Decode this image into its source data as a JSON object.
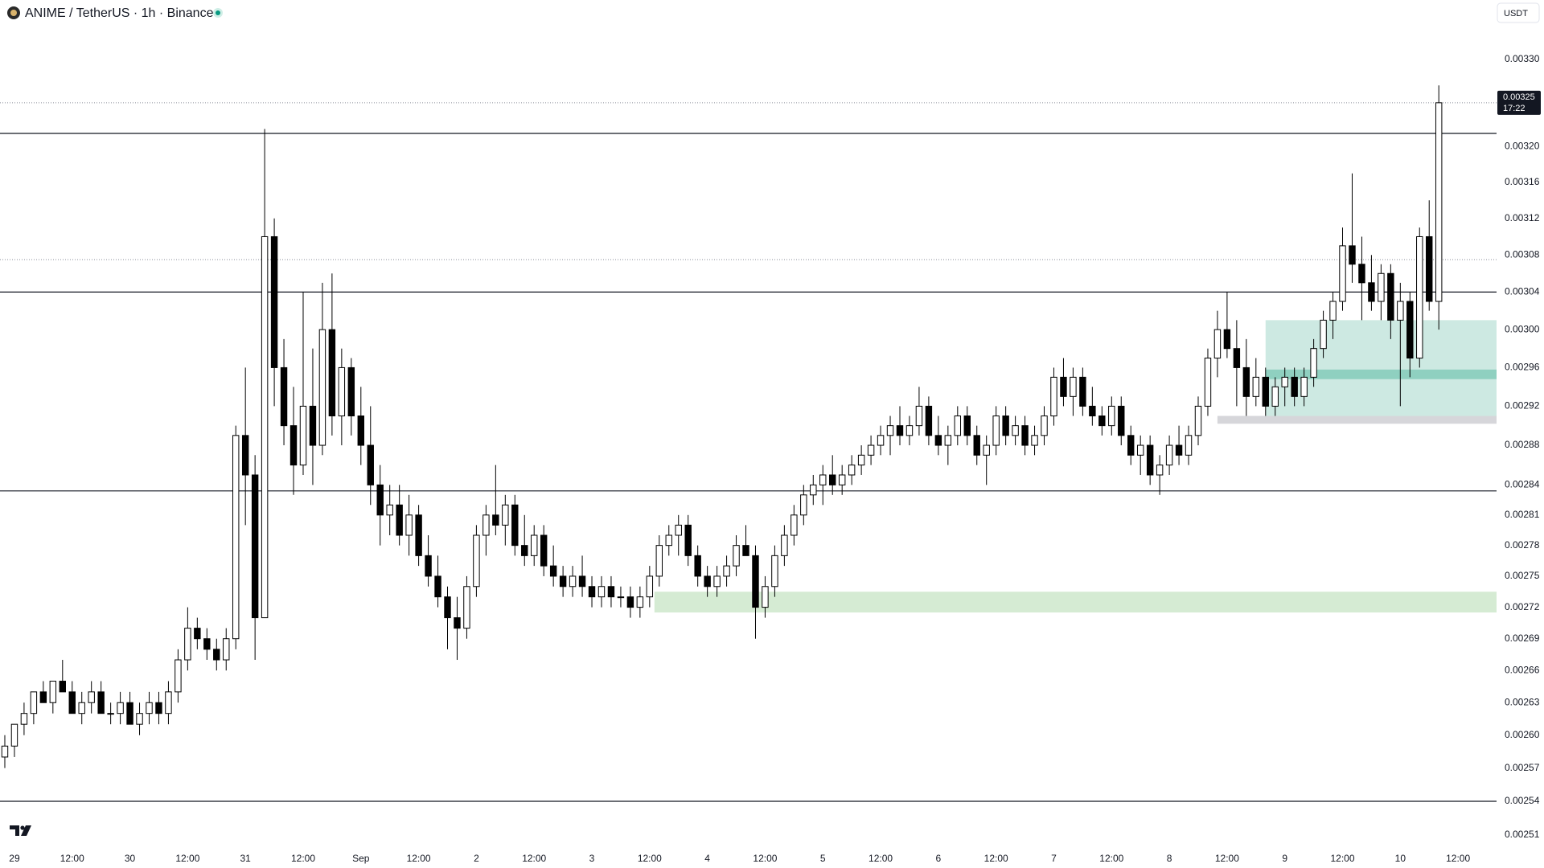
{
  "chart_data": {
    "type": "candlestick",
    "title": "ANIME / TetherUS · 1h · Binance",
    "currency": "USDT",
    "countdown": "17:22",
    "last_price": 0.00325,
    "log_scale": true,
    "grid": false,
    "up_color": "#ffffff",
    "down_color": "#000000",
    "xlim": [
      -3,
      308
    ],
    "ylim": [
      0.0025,
      0.00337
    ],
    "xticks": [
      {
        "value": 0,
        "label": "29"
      },
      {
        "value": 12,
        "label": "12:00"
      },
      {
        "value": 24,
        "label": "30"
      },
      {
        "value": 36,
        "label": "12:00"
      },
      {
        "value": 48,
        "label": "31"
      },
      {
        "value": 60,
        "label": "12:00"
      },
      {
        "value": 72,
        "label": "Sep"
      },
      {
        "value": 84,
        "label": "12:00"
      },
      {
        "value": 96,
        "label": "2"
      },
      {
        "value": 108,
        "label": "12:00"
      },
      {
        "value": 120,
        "label": "3"
      },
      {
        "value": 132,
        "label": "12:00"
      },
      {
        "value": 144,
        "label": "4"
      },
      {
        "value": 156,
        "label": "12:00"
      },
      {
        "value": 168,
        "label": "5"
      },
      {
        "value": 180,
        "label": "12:00"
      },
      {
        "value": 192,
        "label": "6"
      },
      {
        "value": 204,
        "label": "12:00"
      },
      {
        "value": 216,
        "label": "7"
      },
      {
        "value": 228,
        "label": "12:00"
      },
      {
        "value": 240,
        "label": "8"
      },
      {
        "value": 252,
        "label": "12:00"
      },
      {
        "value": 264,
        "label": "9"
      },
      {
        "value": 276,
        "label": "12:00"
      },
      {
        "value": 288,
        "label": "10"
      },
      {
        "value": 300,
        "label": "12:00"
      }
    ],
    "yticks": [
      {
        "value": 0.0033,
        "label": "0.00330"
      },
      {
        "value": 0.0032,
        "label": "0.00320"
      },
      0.00316,
      0.00312,
      0.00308,
      0.00304,
      {
        "value": 0.003,
        "label": "0.00300"
      },
      0.00296,
      0.00292,
      0.00288,
      0.00284,
      0.00281,
      0.00278,
      0.00275,
      0.00272,
      0.00269,
      0.00266,
      0.00263,
      {
        "value": 0.0026,
        "label": "0.00260"
      },
      0.00257,
      0.00254,
      0.00251
    ],
    "levels": [
      0.003215,
      0.00304,
      0.002834,
      0.00254
    ],
    "dotted_levels": [
      0.00325,
      0.003075
    ],
    "zones": [
      {
        "from": 133,
        "low": 0.002715,
        "high": 0.002735,
        "color": "#d5ebd3"
      },
      {
        "from": 260,
        "low": 0.002905,
        "high": 0.00301,
        "color": "#cde9e2"
      },
      {
        "from": 260,
        "low": 0.002948,
        "high": 0.002958,
        "color": "#8fd0c0"
      },
      {
        "from": 250,
        "low": 0.002902,
        "high": 0.00291,
        "color": "#d6d6da"
      }
    ],
    "x": [
      -2,
      0,
      2,
      4,
      6,
      8,
      10,
      12,
      14,
      16,
      18,
      20,
      22,
      24,
      26,
      28,
      30,
      32,
      34,
      36,
      38,
      40,
      42,
      44,
      46,
      48,
      50,
      52,
      54,
      56,
      58,
      60,
      62,
      64,
      66,
      68,
      70,
      72,
      74,
      76,
      78,
      80,
      82,
      84,
      86,
      88,
      90,
      92,
      94,
      96,
      98,
      100,
      102,
      104,
      106,
      108,
      110,
      112,
      114,
      116,
      118,
      120,
      122,
      124,
      126,
      128,
      130,
      132,
      134,
      136,
      138,
      140,
      142,
      144,
      146,
      148,
      150,
      152,
      154,
      156,
      158,
      160,
      162,
      164,
      166,
      168,
      170,
      172,
      174,
      176,
      178,
      180,
      182,
      184,
      186,
      188,
      190,
      192,
      194,
      196,
      198,
      200,
      202,
      204,
      206,
      208,
      210,
      212,
      214,
      216,
      218,
      220,
      222,
      224,
      226,
      228,
      230,
      232,
      234,
      236,
      238,
      240,
      242,
      244,
      246,
      248,
      250,
      252,
      254,
      256,
      258,
      260,
      262,
      264,
      266,
      268,
      270,
      272,
      274,
      276,
      278,
      280,
      282,
      284,
      286,
      288,
      290,
      292,
      294,
      296
    ],
    "ohlc": [
      [
        0.00258,
        0.0026,
        0.00257,
        0.00259
      ],
      [
        0.00259,
        0.00261,
        0.00258,
        0.00261
      ],
      [
        0.00261,
        0.00263,
        0.0026,
        0.00262
      ],
      [
        0.00262,
        0.00264,
        0.00261,
        0.00264
      ],
      [
        0.00264,
        0.00265,
        0.00263,
        0.00263
      ],
      [
        0.00263,
        0.00265,
        0.00262,
        0.00265
      ],
      [
        0.00265,
        0.00267,
        0.00264,
        0.00264
      ],
      [
        0.00264,
        0.00265,
        0.00262,
        0.00262
      ],
      [
        0.00262,
        0.00264,
        0.00261,
        0.00263
      ],
      [
        0.00263,
        0.00265,
        0.00262,
        0.00264
      ],
      [
        0.00264,
        0.00265,
        0.00262,
        0.00262
      ],
      [
        0.00262,
        0.00263,
        0.00261,
        0.00262
      ],
      [
        0.00262,
        0.00264,
        0.00261,
        0.00263
      ],
      [
        0.00263,
        0.00264,
        0.00261,
        0.00261
      ],
      [
        0.00261,
        0.00263,
        0.0026,
        0.00262
      ],
      [
        0.00262,
        0.00264,
        0.00261,
        0.00263
      ],
      [
        0.00263,
        0.00264,
        0.00261,
        0.00262
      ],
      [
        0.00262,
        0.00265,
        0.00261,
        0.00264
      ],
      [
        0.00264,
        0.00268,
        0.00263,
        0.00267
      ],
      [
        0.00267,
        0.00272,
        0.00266,
        0.0027
      ],
      [
        0.0027,
        0.00271,
        0.00268,
        0.00269
      ],
      [
        0.00269,
        0.0027,
        0.00267,
        0.00268
      ],
      [
        0.00268,
        0.00269,
        0.00266,
        0.00267
      ],
      [
        0.00267,
        0.0027,
        0.00266,
        0.00269
      ],
      [
        0.00269,
        0.0029,
        0.00268,
        0.00289
      ],
      [
        0.00289,
        0.00296,
        0.0028,
        0.00285
      ],
      [
        0.00285,
        0.00287,
        0.00267,
        0.00271
      ],
      [
        0.00271,
        0.00322,
        0.00271,
        0.0031
      ],
      [
        0.0031,
        0.00312,
        0.00292,
        0.00296
      ],
      [
        0.00296,
        0.00299,
        0.00288,
        0.0029
      ],
      [
        0.0029,
        0.00294,
        0.00283,
        0.00286
      ],
      [
        0.00286,
        0.00304,
        0.00285,
        0.00292
      ],
      [
        0.00292,
        0.00298,
        0.00284,
        0.00288
      ],
      [
        0.00288,
        0.00305,
        0.00287,
        0.003
      ],
      [
        0.003,
        0.00306,
        0.00289,
        0.00291
      ],
      [
        0.00291,
        0.00298,
        0.00288,
        0.00296
      ],
      [
        0.00296,
        0.00297,
        0.00289,
        0.00291
      ],
      [
        0.00291,
        0.00294,
        0.00286,
        0.00288
      ],
      [
        0.00288,
        0.00292,
        0.00282,
        0.00284
      ],
      [
        0.00284,
        0.00286,
        0.00278,
        0.00281
      ],
      [
        0.00281,
        0.00284,
        0.00279,
        0.00282
      ],
      [
        0.00282,
        0.00284,
        0.00278,
        0.00279
      ],
      [
        0.00279,
        0.00283,
        0.00277,
        0.00281
      ],
      [
        0.00281,
        0.00282,
        0.00276,
        0.00277
      ],
      [
        0.00277,
        0.00279,
        0.00274,
        0.00275
      ],
      [
        0.00275,
        0.00277,
        0.00272,
        0.00273
      ],
      [
        0.00273,
        0.00274,
        0.00268,
        0.00271
      ],
      [
        0.00271,
        0.00273,
        0.00267,
        0.0027
      ],
      [
        0.0027,
        0.00275,
        0.00269,
        0.00274
      ],
      [
        0.00274,
        0.0028,
        0.00273,
        0.00279
      ],
      [
        0.00279,
        0.00282,
        0.00277,
        0.00281
      ],
      [
        0.00281,
        0.00286,
        0.00279,
        0.0028
      ],
      [
        0.0028,
        0.00283,
        0.00278,
        0.00282
      ],
      [
        0.00282,
        0.00283,
        0.00277,
        0.00278
      ],
      [
        0.00278,
        0.00281,
        0.00276,
        0.00277
      ],
      [
        0.00277,
        0.0028,
        0.00276,
        0.00279
      ],
      [
        0.00279,
        0.0028,
        0.00275,
        0.00276
      ],
      [
        0.00276,
        0.00278,
        0.00274,
        0.00275
      ],
      [
        0.00275,
        0.00276,
        0.00273,
        0.00274
      ],
      [
        0.00274,
        0.00276,
        0.00273,
        0.00275
      ],
      [
        0.00275,
        0.00277,
        0.00273,
        0.00274
      ],
      [
        0.00274,
        0.00275,
        0.00272,
        0.00273
      ],
      [
        0.00273,
        0.00275,
        0.00272,
        0.00274
      ],
      [
        0.00274,
        0.00275,
        0.00272,
        0.00273
      ],
      [
        0.00273,
        0.00274,
        0.00272,
        0.00273
      ],
      [
        0.00273,
        0.00274,
        0.00271,
        0.00272
      ],
      [
        0.00272,
        0.00274,
        0.00271,
        0.00273
      ],
      [
        0.00273,
        0.00276,
        0.00272,
        0.00275
      ],
      [
        0.00275,
        0.00279,
        0.00274,
        0.00278
      ],
      [
        0.00278,
        0.0028,
        0.00277,
        0.00279
      ],
      [
        0.00279,
        0.00281,
        0.00277,
        0.0028
      ],
      [
        0.0028,
        0.00281,
        0.00276,
        0.00277
      ],
      [
        0.00277,
        0.00278,
        0.00274,
        0.00275
      ],
      [
        0.00275,
        0.00276,
        0.00273,
        0.00274
      ],
      [
        0.00274,
        0.00276,
        0.00273,
        0.00275
      ],
      [
        0.00275,
        0.00277,
        0.00274,
        0.00276
      ],
      [
        0.00276,
        0.00279,
        0.00275,
        0.00278
      ],
      [
        0.00278,
        0.0028,
        0.00277,
        0.00277
      ],
      [
        0.00277,
        0.00278,
        0.00269,
        0.00272
      ],
      [
        0.00272,
        0.00275,
        0.00271,
        0.00274
      ],
      [
        0.00274,
        0.00278,
        0.00273,
        0.00277
      ],
      [
        0.00277,
        0.0028,
        0.00276,
        0.00279
      ],
      [
        0.00279,
        0.00282,
        0.00278,
        0.00281
      ],
      [
        0.00281,
        0.00284,
        0.0028,
        0.00283
      ],
      [
        0.00283,
        0.00285,
        0.00282,
        0.00284
      ],
      [
        0.00284,
        0.00286,
        0.00282,
        0.00285
      ],
      [
        0.00285,
        0.00287,
        0.00283,
        0.00284
      ],
      [
        0.00284,
        0.00286,
        0.00283,
        0.00285
      ],
      [
        0.00285,
        0.00287,
        0.00284,
        0.00286
      ],
      [
        0.00286,
        0.00288,
        0.00285,
        0.00287
      ],
      [
        0.00287,
        0.00289,
        0.00286,
        0.00288
      ],
      [
        0.00288,
        0.0029,
        0.00287,
        0.00289
      ],
      [
        0.00289,
        0.00291,
        0.00287,
        0.0029
      ],
      [
        0.0029,
        0.00292,
        0.00288,
        0.00289
      ],
      [
        0.00289,
        0.00291,
        0.00288,
        0.0029
      ],
      [
        0.0029,
        0.00294,
        0.00289,
        0.00292
      ],
      [
        0.00292,
        0.00293,
        0.00288,
        0.00289
      ],
      [
        0.00289,
        0.00291,
        0.00287,
        0.00288
      ],
      [
        0.00288,
        0.0029,
        0.00286,
        0.00289
      ],
      [
        0.00289,
        0.00292,
        0.00288,
        0.00291
      ],
      [
        0.00291,
        0.00292,
        0.00288,
        0.00289
      ],
      [
        0.00289,
        0.0029,
        0.00286,
        0.00287
      ],
      [
        0.00287,
        0.00289,
        0.00284,
        0.00288
      ],
      [
        0.00288,
        0.00292,
        0.00287,
        0.00291
      ],
      [
        0.00291,
        0.00292,
        0.00288,
        0.00289
      ],
      [
        0.00289,
        0.00291,
        0.00288,
        0.0029
      ],
      [
        0.0029,
        0.00291,
        0.00287,
        0.00288
      ],
      [
        0.00288,
        0.0029,
        0.00287,
        0.00289
      ],
      [
        0.00289,
        0.00292,
        0.00288,
        0.00291
      ],
      [
        0.00291,
        0.00296,
        0.0029,
        0.00295
      ],
      [
        0.00295,
        0.00297,
        0.00292,
        0.00293
      ],
      [
        0.00293,
        0.00296,
        0.00291,
        0.00295
      ],
      [
        0.00295,
        0.00296,
        0.00291,
        0.00292
      ],
      [
        0.00292,
        0.00294,
        0.0029,
        0.00291
      ],
      [
        0.00291,
        0.00292,
        0.00289,
        0.0029
      ],
      [
        0.0029,
        0.00293,
        0.00289,
        0.00292
      ],
      [
        0.00292,
        0.00293,
        0.00288,
        0.00289
      ],
      [
        0.00289,
        0.0029,
        0.00286,
        0.00287
      ],
      [
        0.00287,
        0.00289,
        0.00285,
        0.00288
      ],
      [
        0.00288,
        0.00289,
        0.00284,
        0.00285
      ],
      [
        0.00285,
        0.00287,
        0.00283,
        0.00286
      ],
      [
        0.00286,
        0.00289,
        0.00285,
        0.00288
      ],
      [
        0.00288,
        0.0029,
        0.00286,
        0.00287
      ],
      [
        0.00287,
        0.0029,
        0.00286,
        0.00289
      ],
      [
        0.00289,
        0.00293,
        0.00288,
        0.00292
      ],
      [
        0.00292,
        0.00298,
        0.00291,
        0.00297
      ],
      [
        0.00297,
        0.00302,
        0.00295,
        0.003
      ],
      [
        0.003,
        0.00304,
        0.00297,
        0.00298
      ],
      [
        0.00298,
        0.00301,
        0.00292,
        0.00296
      ],
      [
        0.00296,
        0.00299,
        0.00291,
        0.00293
      ],
      [
        0.00293,
        0.00297,
        0.00292,
        0.00295
      ],
      [
        0.00295,
        0.00296,
        0.00291,
        0.00292
      ],
      [
        0.00292,
        0.00295,
        0.00291,
        0.00294
      ],
      [
        0.00294,
        0.00296,
        0.00292,
        0.00295
      ],
      [
        0.00295,
        0.00296,
        0.00292,
        0.00293
      ],
      [
        0.00293,
        0.00296,
        0.00292,
        0.00295
      ],
      [
        0.00295,
        0.00299,
        0.00294,
        0.00298
      ],
      [
        0.00298,
        0.00302,
        0.00297,
        0.00301
      ],
      [
        0.00301,
        0.00304,
        0.00299,
        0.00303
      ],
      [
        0.00303,
        0.00311,
        0.00302,
        0.00309
      ],
      [
        0.00309,
        0.00317,
        0.00305,
        0.00307
      ],
      [
        0.00307,
        0.0031,
        0.00301,
        0.00305
      ],
      [
        0.00305,
        0.00308,
        0.00302,
        0.00303
      ],
      [
        0.00303,
        0.00307,
        0.00301,
        0.00306
      ],
      [
        0.00306,
        0.00307,
        0.00299,
        0.00301
      ],
      [
        0.00301,
        0.00305,
        0.00292,
        0.00303
      ],
      [
        0.00303,
        0.00304,
        0.00295,
        0.00297
      ],
      [
        0.00297,
        0.00311,
        0.00296,
        0.0031
      ],
      [
        0.0031,
        0.00314,
        0.00302,
        0.00303
      ],
      [
        0.00303,
        0.00327,
        0.003,
        0.00325
      ]
    ]
  }
}
